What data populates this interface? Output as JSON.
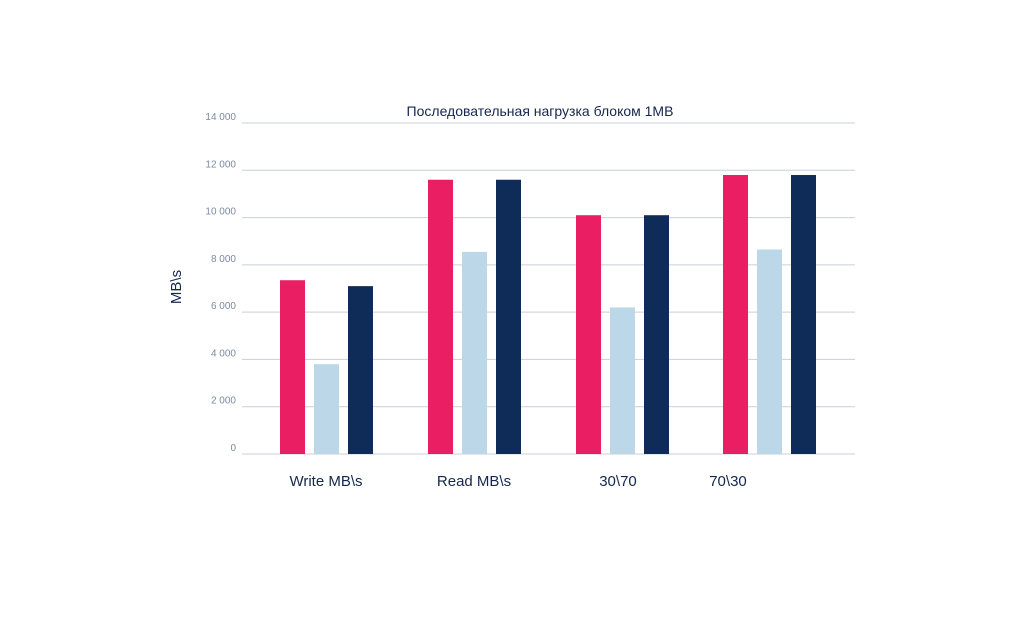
{
  "chart_data": {
    "type": "bar",
    "title": "Последовательная нагрузка блоком 1MB",
    "xlabel": "",
    "ylabel": "MB\\s",
    "ylim": [
      0,
      14000
    ],
    "yticks": [
      0,
      2000,
      4000,
      6000,
      8000,
      10000,
      12000,
      14000
    ],
    "ytick_labels": [
      "0",
      "2 000",
      "4 000",
      "6 000",
      "8 000",
      "10 000",
      "12 000",
      "14 000"
    ],
    "grid": true,
    "legend": "none",
    "categories": [
      "Write MB\\s",
      "Read MB\\s",
      "30\\70",
      "70\\30"
    ],
    "series": [
      {
        "color": "#e91e63",
        "values": [
          7350,
          11600,
          10100,
          11800
        ]
      },
      {
        "color": "#bcd8e8",
        "values": [
          3800,
          8550,
          6200,
          8650
        ]
      },
      {
        "color": "#0f2b57",
        "values": [
          7100,
          11600,
          10100,
          11800
        ]
      }
    ]
  }
}
